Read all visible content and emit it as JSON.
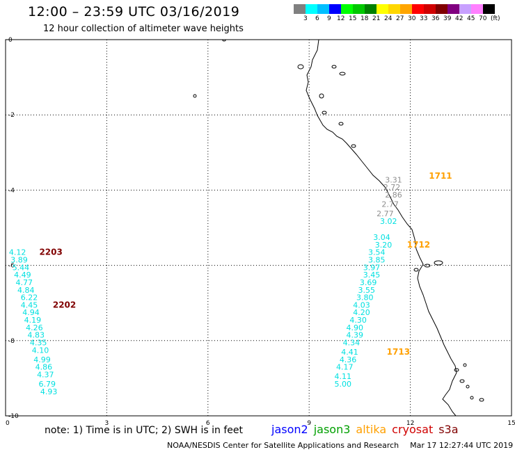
{
  "header": {
    "title": "12:00 – 23:59 UTC 03/16/2019",
    "subtitle": "12 hour collection of altimeter wave heights"
  },
  "legend": {
    "unit": "(ft)",
    "swatches": [
      {
        "color": "#808080",
        "label": "3"
      },
      {
        "color": "#00ffff",
        "label": "6"
      },
      {
        "color": "#00bfff",
        "label": "9"
      },
      {
        "color": "#0000ff",
        "label": "12"
      },
      {
        "color": "#00ff00",
        "label": "15"
      },
      {
        "color": "#00c800",
        "label": "18"
      },
      {
        "color": "#008000",
        "label": "21"
      },
      {
        "color": "#ffff00",
        "label": "24"
      },
      {
        "color": "#ffd700",
        "label": "27"
      },
      {
        "color": "#ffa500",
        "label": "30"
      },
      {
        "color": "#ff0000",
        "label": "33"
      },
      {
        "color": "#d00000",
        "label": "36"
      },
      {
        "color": "#800000",
        "label": "39"
      },
      {
        "color": "#800080",
        "label": "42"
      },
      {
        "color": "#c8a0ff",
        "label": "45"
      },
      {
        "color": "#ff80ff",
        "label": "70"
      },
      {
        "color": "#000000",
        "label": ""
      }
    ]
  },
  "axes": {
    "x_ticks": [
      "0",
      "3",
      "6",
      "9",
      "12",
      "15"
    ],
    "y_ticks": [
      "0",
      "-2",
      "-4",
      "-6",
      "-8",
      "-10"
    ],
    "xlim": [
      0,
      15
    ],
    "ylim": [
      -10,
      0
    ]
  },
  "tracks": [
    {
      "color": "#00e0e0",
      "points": [
        {
          "lon": 0.1,
          "lat": -5.65,
          "v": "4.12"
        },
        {
          "lon": 0.15,
          "lat": -5.85,
          "v": "3.89"
        },
        {
          "lon": 0.2,
          "lat": -6.05,
          "v": "5.44"
        },
        {
          "lon": 0.25,
          "lat": -6.25,
          "v": "4.49"
        },
        {
          "lon": 0.3,
          "lat": -6.45,
          "v": "4.77"
        },
        {
          "lon": 0.35,
          "lat": -6.65,
          "v": "4.84"
        },
        {
          "lon": 0.45,
          "lat": -6.85,
          "v": "6.22"
        },
        {
          "lon": 0.45,
          "lat": -7.05,
          "v": "4.45"
        },
        {
          "lon": 0.5,
          "lat": -7.25,
          "v": "4.94"
        },
        {
          "lon": 0.55,
          "lat": -7.45,
          "v": "4.19"
        },
        {
          "lon": 0.6,
          "lat": -7.65,
          "v": "4.26"
        },
        {
          "lon": 0.65,
          "lat": -7.85,
          "v": "4.83"
        },
        {
          "lon": 0.72,
          "lat": -8.05,
          "v": "4.35"
        },
        {
          "lon": 0.78,
          "lat": -8.25,
          "v": "4.10"
        },
        {
          "lon": 0.83,
          "lat": -8.5,
          "v": "4.99"
        },
        {
          "lon": 0.88,
          "lat": -8.7,
          "v": "4.86"
        },
        {
          "lon": 0.93,
          "lat": -8.9,
          "v": "4.37"
        },
        {
          "lon": 0.98,
          "lat": -9.15,
          "v": "6.79"
        },
        {
          "lon": 1.03,
          "lat": -9.35,
          "v": "4.93"
        }
      ]
    },
    {
      "color": "#00e0e0",
      "points": [
        {
          "lon": 11.1,
          "lat": -4.82,
          "v": "3.02"
        },
        {
          "lon": 10.9,
          "lat": -5.25,
          "v": "3.04"
        },
        {
          "lon": 10.95,
          "lat": -5.45,
          "v": "3.20"
        },
        {
          "lon": 10.75,
          "lat": -5.65,
          "v": "3.54"
        },
        {
          "lon": 10.75,
          "lat": -5.85,
          "v": "3.85"
        },
        {
          "lon": 10.6,
          "lat": -6.05,
          "v": "3.97"
        },
        {
          "lon": 10.6,
          "lat": -6.25,
          "v": "3.45"
        },
        {
          "lon": 10.5,
          "lat": -6.45,
          "v": "3.69"
        },
        {
          "lon": 10.45,
          "lat": -6.65,
          "v": "3.55"
        },
        {
          "lon": 10.4,
          "lat": -6.85,
          "v": "3.80"
        },
        {
          "lon": 10.3,
          "lat": -7.05,
          "v": "4.03"
        },
        {
          "lon": 10.3,
          "lat": -7.25,
          "v": "4.20"
        },
        {
          "lon": 10.2,
          "lat": -7.45,
          "v": "4.30"
        },
        {
          "lon": 10.1,
          "lat": -7.65,
          "v": "4.90"
        },
        {
          "lon": 10.1,
          "lat": -7.85,
          "v": "4.39"
        },
        {
          "lon": 10.0,
          "lat": -8.05,
          "v": "4.34"
        },
        {
          "lon": 9.95,
          "lat": -8.3,
          "v": "4.41"
        },
        {
          "lon": 9.9,
          "lat": -8.5,
          "v": "4.36"
        },
        {
          "lon": 9.8,
          "lat": -8.7,
          "v": "4.17"
        },
        {
          "lon": 9.75,
          "lat": -8.95,
          "v": "4.11"
        },
        {
          "lon": 9.75,
          "lat": -9.15,
          "v": "5.00"
        }
      ]
    },
    {
      "color": "#909090",
      "points": [
        {
          "lon": 11.25,
          "lat": -3.72,
          "v": "3.31"
        },
        {
          "lon": 11.2,
          "lat": -3.92,
          "v": "2.72"
        },
        {
          "lon": 11.25,
          "lat": -4.12,
          "v": "2.86"
        },
        {
          "lon": 11.15,
          "lat": -4.37,
          "v": "2.77"
        },
        {
          "lon": 11.0,
          "lat": -4.62,
          "v": "2.77"
        }
      ]
    }
  ],
  "time_labels": [
    {
      "lon": 1.0,
      "lat": -5.65,
      "text": "2203",
      "color": "#800000"
    },
    {
      "lon": 1.4,
      "lat": -7.05,
      "text": "2202",
      "color": "#800000"
    },
    {
      "lon": 12.55,
      "lat": -3.62,
      "text": "1711",
      "color": "#ffa000"
    },
    {
      "lon": 11.9,
      "lat": -5.45,
      "text": "1712",
      "color": "#ffa000"
    },
    {
      "lon": 11.3,
      "lat": -8.3,
      "text": "1713",
      "color": "#ffa000"
    }
  ],
  "footer": {
    "note": "note: 1) Time is in UTC; 2) SWH is in feet",
    "satellites": [
      {
        "name": "jason2",
        "color": "#0000ff"
      },
      {
        "name": "jason3",
        "color": "#00a000"
      },
      {
        "name": "altika",
        "color": "#ffa000"
      },
      {
        "name": "cryosat",
        "color": "#d00000"
      },
      {
        "name": "s3a",
        "color": "#800000"
      }
    ],
    "credit": "NOAA/NESDIS Center for Satellite Applications and Research",
    "timestamp": "Mar 17 12:27:44 UTC 2019"
  }
}
